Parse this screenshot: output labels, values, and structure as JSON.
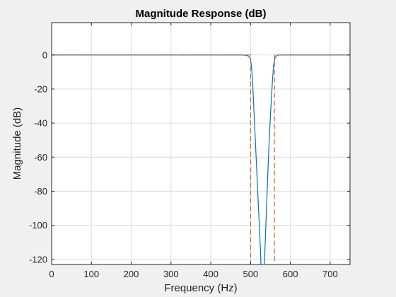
{
  "chart_data": {
    "type": "line",
    "title": "Magnitude Response (dB)",
    "xlabel": "Frequency (Hz)",
    "ylabel": "Magnitude (dB)",
    "xlim": [
      0,
      750
    ],
    "ylim": [
      -123,
      19
    ],
    "xticks": [
      0,
      100,
      200,
      300,
      400,
      500,
      600,
      700
    ],
    "yticks": [
      0,
      -20,
      -40,
      -60,
      -80,
      -100,
      -120
    ],
    "grid": true,
    "colors": {
      "response": "#0072bd",
      "mask": "#d95319",
      "axes_bg": "#ffffff",
      "figure_bg": "#f0f0f0",
      "grid": "#dcdcdc"
    },
    "series": [
      {
        "type": "line",
        "x": [
          0,
          300,
          400,
          480,
          490,
          495,
          498,
          500,
          502,
          505,
          510,
          515,
          520,
          525,
          527,
          530,
          533,
          536,
          540,
          545,
          550,
          555,
          558,
          560,
          562,
          565,
          570,
          600,
          700,
          750
        ],
        "values": [
          0,
          0,
          0,
          0,
          -0.2,
          -0.7,
          -1.5,
          -3,
          -6,
          -15,
          -40,
          -65,
          -90,
          -115,
          -130,
          -150,
          -130,
          -115,
          -90,
          -60,
          -35,
          -15,
          -6,
          -3,
          -1.5,
          -0.5,
          0,
          0,
          0,
          0
        ]
      },
      {
        "type": "line",
        "style": "dashed",
        "x": [
          0,
          500,
          500,
          560,
          560,
          750
        ],
        "values": [
          0,
          0,
          -123,
          -123,
          0,
          0
        ]
      }
    ]
  }
}
